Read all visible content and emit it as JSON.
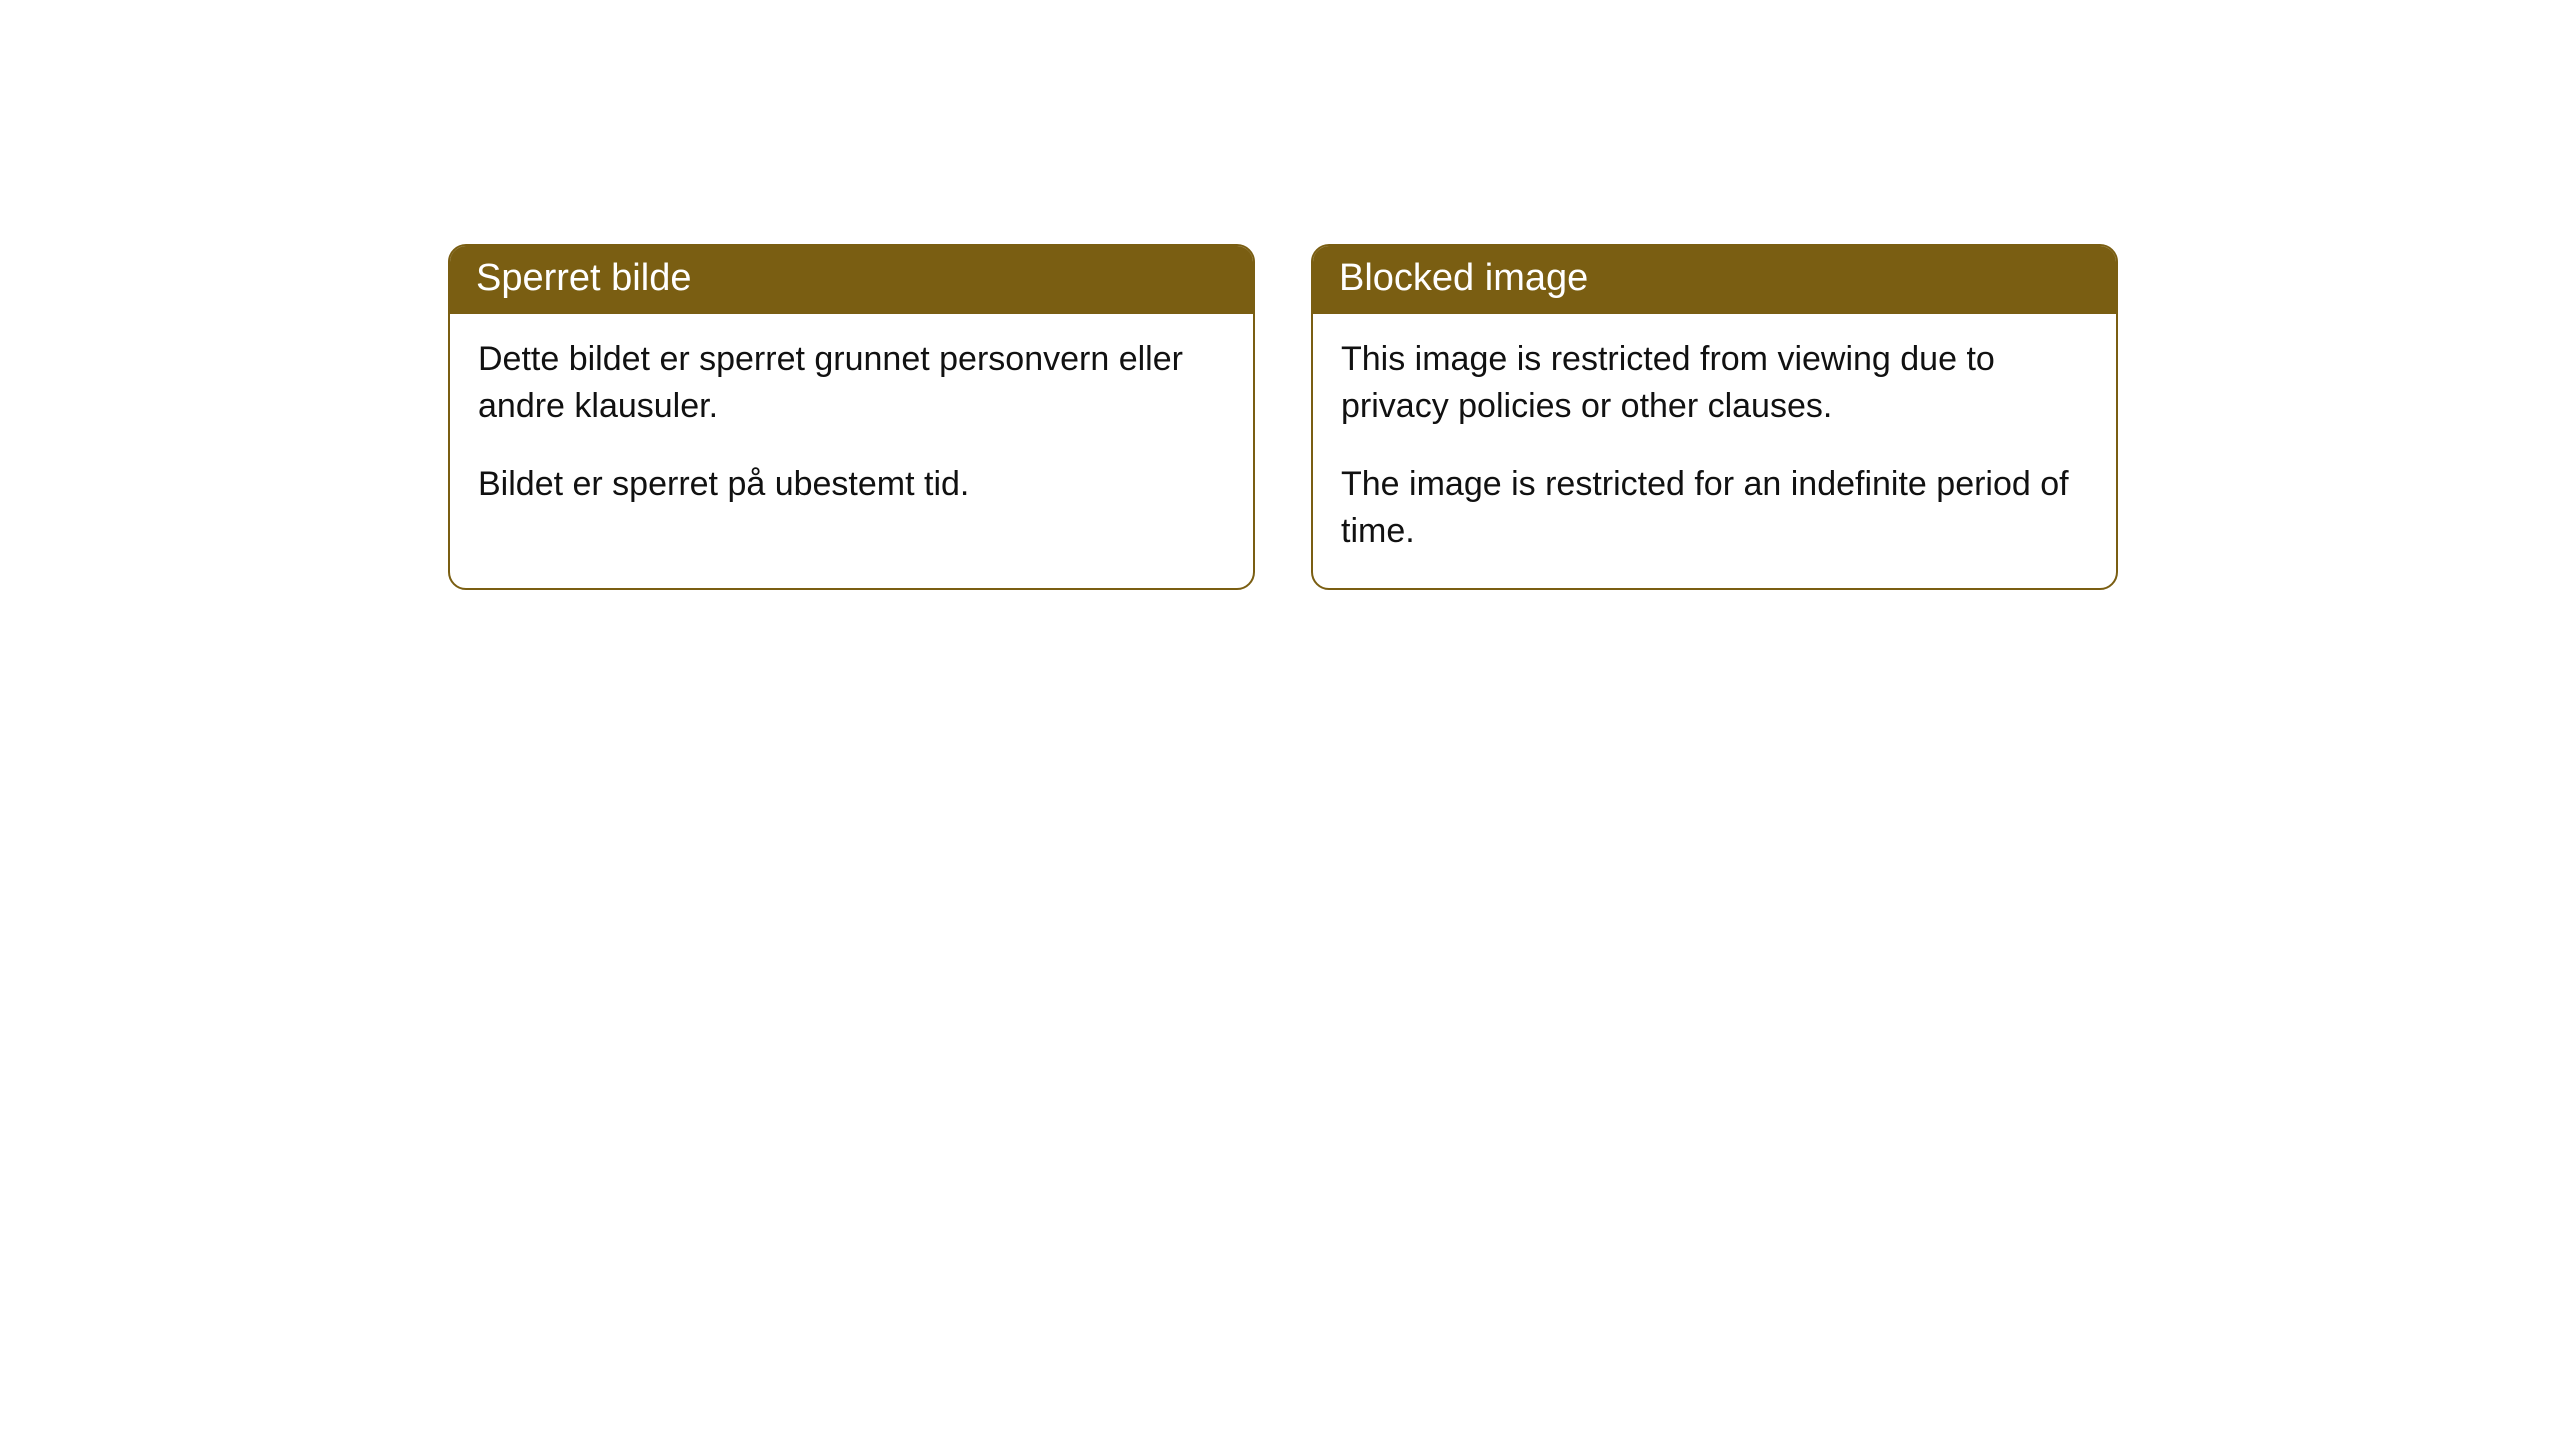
{
  "notices": [
    {
      "title": "Sperret bilde",
      "paragraph1": "Dette bildet er sperret grunnet personvern eller andre klausuler.",
      "paragraph2": "Bildet er sperret på ubestemt tid."
    },
    {
      "title": "Blocked image",
      "paragraph1": "This image is restricted from viewing due to privacy policies or other clauses.",
      "paragraph2": "The image is restricted for an indefinite period of time."
    }
  ],
  "style": {
    "header_bg": "#7a5e12",
    "header_text_color": "#ffffff",
    "border_color": "#7a5e12",
    "body_text_color": "#111111",
    "card_bg": "#ffffff",
    "border_radius": 18,
    "header_fontsize": 38,
    "body_fontsize": 34
  }
}
